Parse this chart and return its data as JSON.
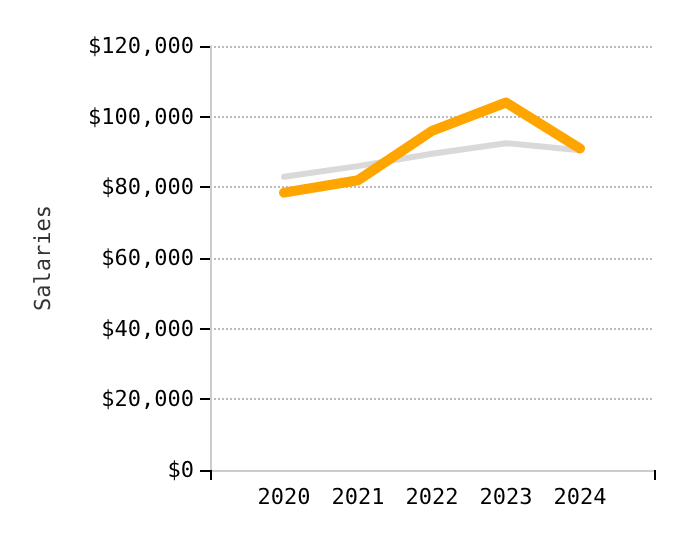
{
  "chart_data": {
    "type": "line",
    "ylabel": "Salaries",
    "x": [
      2020,
      2021,
      2022,
      2023,
      2024
    ],
    "xlim": [
      2019,
      2025
    ],
    "xticks": [
      2020,
      2021,
      2022,
      2023,
      2024
    ],
    "ylim": [
      0,
      120000
    ],
    "yticks": [
      {
        "value": 0,
        "label": "$0"
      },
      {
        "value": 20000,
        "label": "$20,000"
      },
      {
        "value": 40000,
        "label": "$40,000"
      },
      {
        "value": 60000,
        "label": "$60,000"
      },
      {
        "value": 80000,
        "label": "$80,000"
      },
      {
        "value": 100000,
        "label": "$100,000"
      },
      {
        "value": 120000,
        "label": "$120,000"
      }
    ],
    "grid": "y",
    "marker": "none",
    "line_style": "solid",
    "series": [
      {
        "color": "#d9d9d9",
        "values": [
          83000,
          86000,
          89500,
          92500,
          90500
        ]
      },
      {
        "color": "#ffa500",
        "values": [
          78500,
          82000,
          96000,
          104000,
          91000
        ]
      }
    ]
  }
}
